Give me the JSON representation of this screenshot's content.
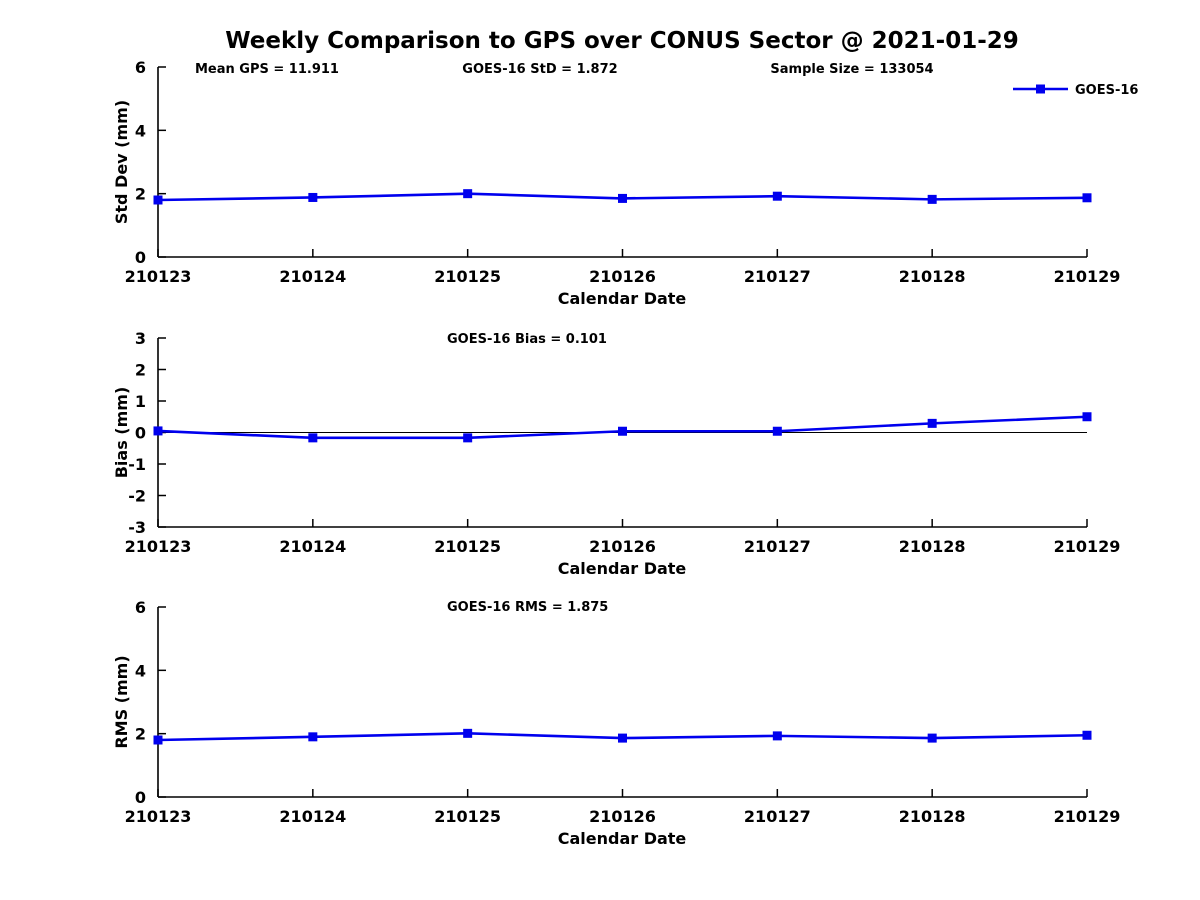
{
  "title": "Weekly Comparison to GPS over CONUS Sector @ 2021-01-29",
  "colors": {
    "series": "#0000EE",
    "axis": "#000000",
    "text": "#000000",
    "background": "#FFFFFF",
    "zero_line": "#000000"
  },
  "legend": {
    "label": "GOES-16"
  },
  "chart_data": [
    {
      "type": "line",
      "panel": "std-dev",
      "annotations": [
        "Mean GPS = 11.911",
        "GOES-16 StD = 1.872",
        "Sample Size = 133054"
      ],
      "xlabel": "Calendar Date",
      "ylabel": "Std Dev (mm)",
      "categories": [
        "210123",
        "210124",
        "210125",
        "210126",
        "210127",
        "210128",
        "210129"
      ],
      "series": [
        {
          "name": "GOES-16",
          "values": [
            1.8,
            1.88,
            2.0,
            1.85,
            1.92,
            1.82,
            1.87
          ]
        }
      ],
      "ylim": [
        0,
        6
      ],
      "yticks": [
        0,
        2,
        4,
        6
      ],
      "grid": false,
      "zero_line": false,
      "legend_position": "top-right",
      "marker": "square"
    },
    {
      "type": "line",
      "panel": "bias",
      "annotations": [
        "GOES-16 Bias  = 0.101"
      ],
      "xlabel": "Calendar Date",
      "ylabel": "Bias (mm)",
      "categories": [
        "210123",
        "210124",
        "210125",
        "210126",
        "210127",
        "210128",
        "210129"
      ],
      "series": [
        {
          "name": "GOES-16",
          "values": [
            0.05,
            -0.17,
            -0.17,
            0.04,
            0.04,
            0.29,
            0.5
          ]
        }
      ],
      "ylim": [
        -3,
        3
      ],
      "yticks": [
        -3,
        -2,
        -1,
        0,
        1,
        2,
        3
      ],
      "grid": false,
      "zero_line": true,
      "legend_position": "none",
      "marker": "square"
    },
    {
      "type": "line",
      "panel": "rms",
      "annotations": [
        "GOES-16 RMS = 1.875"
      ],
      "xlabel": "Calendar Date",
      "ylabel": "RMS (mm)",
      "categories": [
        "210123",
        "210124",
        "210125",
        "210126",
        "210127",
        "210128",
        "210129"
      ],
      "series": [
        {
          "name": "GOES-16",
          "values": [
            1.8,
            1.9,
            2.01,
            1.86,
            1.93,
            1.86,
            1.95
          ]
        }
      ],
      "ylim": [
        0,
        6
      ],
      "yticks": [
        0,
        2,
        4,
        6
      ],
      "grid": false,
      "zero_line": false,
      "legend_position": "none",
      "marker": "square"
    }
  ]
}
